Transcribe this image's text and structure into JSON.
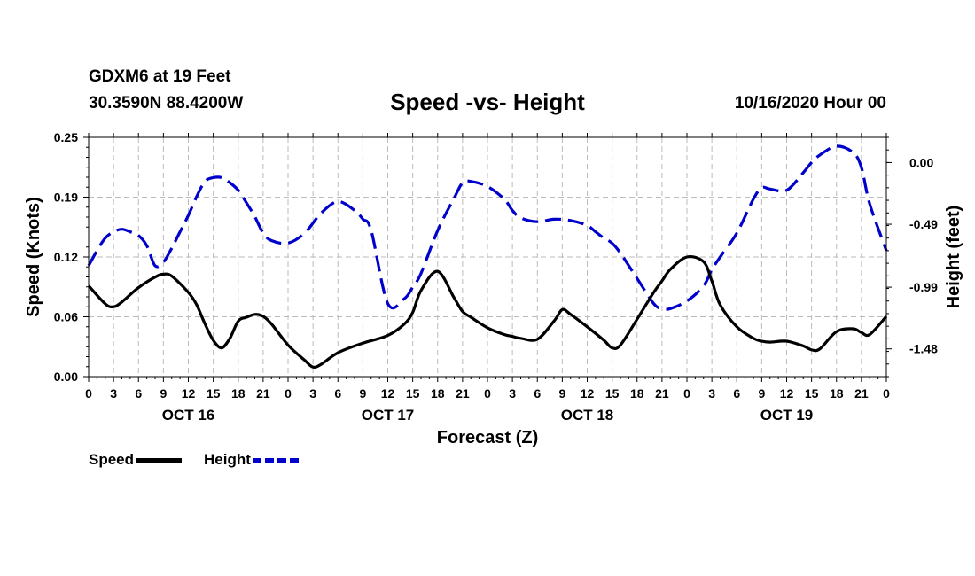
{
  "header": {
    "station": "GDXM6 at 19 Feet",
    "coords": "30.3590N 88.4200W",
    "title": "Speed -vs- Height",
    "date": "10/16/2020 Hour 00"
  },
  "legend": {
    "speed_label": "Speed",
    "height_label": "Height"
  },
  "colors": {
    "speed": "#000000",
    "height": "#0000cc",
    "grid": "#bbbbbb"
  },
  "chart_data": {
    "type": "line",
    "title": "Speed -vs- Height",
    "xlabel": "Forecast (Z)",
    "ylabel": "Speed (Knots)",
    "y2label": "Height (feet)",
    "xlim": [
      0,
      96
    ],
    "ylim": [
      0,
      0.25
    ],
    "y2lim": [
      -1.7,
      0.2
    ],
    "x_ticks": [
      0,
      3,
      6,
      9,
      12,
      15,
      18,
      21,
      24,
      27,
      30,
      33,
      36,
      39,
      42,
      45,
      48,
      51,
      54,
      57,
      60,
      63,
      66,
      69,
      72,
      75,
      78,
      81,
      84,
      87,
      90,
      93,
      96
    ],
    "x_tick_labels": [
      "0",
      "3",
      "6",
      "9",
      "12",
      "15",
      "18",
      "21",
      "0",
      "3",
      "6",
      "9",
      "12",
      "15",
      "18",
      "21",
      "0",
      "3",
      "6",
      "9",
      "12",
      "15",
      "18",
      "21",
      "0",
      "3",
      "6",
      "9",
      "12",
      "15",
      "18",
      "21",
      "0"
    ],
    "day_labels": [
      {
        "x": 12,
        "label": "OCT 16"
      },
      {
        "x": 36,
        "label": "OCT 17"
      },
      {
        "x": 60,
        "label": "OCT 18"
      },
      {
        "x": 84,
        "label": "OCT 19"
      }
    ],
    "y_ticks": [
      0,
      0.0625,
      0.125,
      0.1875,
      0.25
    ],
    "y_tick_labels": [
      "0.00",
      "0.06",
      "0.12",
      "0.19",
      "0.25"
    ],
    "y2_ticks": [
      0.0,
      -0.49,
      -0.99,
      -1.48
    ],
    "y2_tick_labels": [
      "0.00",
      "-0.49",
      "-0.99",
      "-1.48"
    ],
    "series": [
      {
        "name": "Speed",
        "axis": "left",
        "style": "solid",
        "x": [
          0,
          2,
          3,
          4,
          6,
          8,
          9,
          10,
          12,
          13,
          14,
          15,
          16,
          17,
          18,
          19,
          20,
          21,
          22,
          24,
          26,
          27,
          28,
          30,
          33,
          36,
          38,
          39,
          40,
          42,
          44,
          45,
          46,
          48,
          50,
          51,
          52,
          54,
          56,
          57,
          58,
          60,
          62,
          63,
          64,
          66,
          68,
          69,
          70,
          72,
          74,
          75,
          76,
          78,
          80,
          81,
          82,
          84,
          86,
          87,
          88,
          90,
          92,
          93,
          94,
          96
        ],
        "values": [
          0.095,
          0.076,
          0.073,
          0.078,
          0.093,
          0.104,
          0.107,
          0.105,
          0.088,
          0.075,
          0.055,
          0.038,
          0.03,
          0.04,
          0.058,
          0.062,
          0.065,
          0.063,
          0.055,
          0.033,
          0.017,
          0.01,
          0.013,
          0.025,
          0.035,
          0.043,
          0.055,
          0.067,
          0.09,
          0.11,
          0.082,
          0.068,
          0.062,
          0.051,
          0.044,
          0.042,
          0.04,
          0.039,
          0.058,
          0.07,
          0.065,
          0.052,
          0.038,
          0.03,
          0.033,
          0.06,
          0.088,
          0.1,
          0.112,
          0.125,
          0.12,
          0.1,
          0.075,
          0.052,
          0.04,
          0.037,
          0.036,
          0.037,
          0.032,
          0.028,
          0.029,
          0.047,
          0.05,
          0.046,
          0.044,
          0.063
        ]
      },
      {
        "name": "Height",
        "axis": "right",
        "style": "dashed",
        "x": [
          0,
          1,
          2,
          3,
          4,
          5,
          6,
          7,
          8,
          9,
          10,
          11,
          12,
          13,
          14,
          15,
          16,
          17,
          18,
          19,
          20,
          21,
          22,
          24,
          26,
          28,
          30,
          32,
          33,
          34,
          36,
          38,
          39,
          40,
          42,
          44,
          45,
          46,
          48,
          50,
          51,
          52,
          54,
          56,
          58,
          60,
          61,
          62,
          63,
          64,
          66,
          68,
          69,
          70,
          72,
          74,
          75,
          76,
          78,
          80,
          81,
          82,
          84,
          86,
          87,
          88,
          90,
          92,
          93,
          94,
          96
        ],
        "values": [
          -0.82,
          -0.7,
          -0.6,
          -0.55,
          -0.53,
          -0.55,
          -0.58,
          -0.66,
          -0.82,
          -0.79,
          -0.68,
          -0.55,
          -0.42,
          -0.27,
          -0.15,
          -0.12,
          -0.12,
          -0.16,
          -0.22,
          -0.32,
          -0.43,
          -0.56,
          -0.62,
          -0.64,
          -0.56,
          -0.4,
          -0.31,
          -0.38,
          -0.45,
          -0.54,
          -1.12,
          -1.08,
          -0.99,
          -0.88,
          -0.54,
          -0.28,
          -0.16,
          -0.15,
          -0.19,
          -0.29,
          -0.38,
          -0.44,
          -0.47,
          -0.45,
          -0.46,
          -0.5,
          -0.55,
          -0.6,
          -0.64,
          -0.72,
          -0.92,
          -1.12,
          -1.16,
          -1.16,
          -1.1,
          -0.98,
          -0.85,
          -0.75,
          -0.56,
          -0.29,
          -0.2,
          -0.21,
          -0.22,
          -0.08,
          0.0,
          0.06,
          0.13,
          0.08,
          -0.04,
          -0.33,
          -0.7
        ]
      }
    ]
  }
}
